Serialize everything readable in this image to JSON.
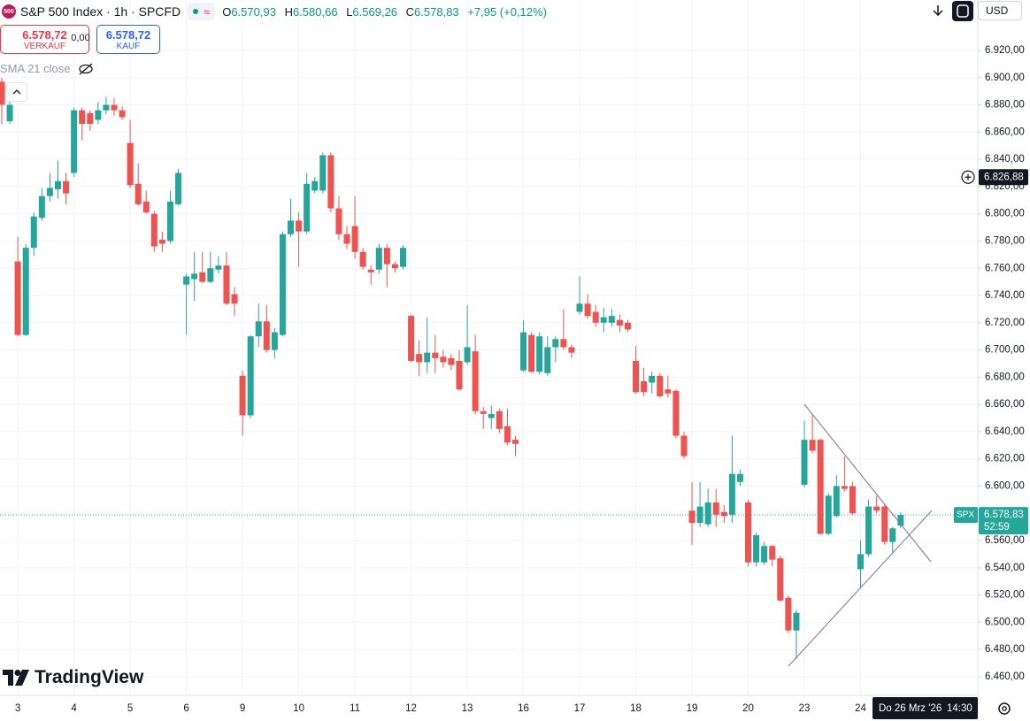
{
  "header": {
    "icon": "500",
    "symbol": "S&P 500 Index · 1h · SPCFD",
    "wave": "≈",
    "open_label": "O",
    "open": "6.570,93",
    "high_label": "H",
    "high": "6.580,66",
    "low_label": "L",
    "low": "6.569,26",
    "close_label": "C",
    "close": "6.578,83",
    "change": "+7,95 (+0,12%)",
    "currency": "USD"
  },
  "trade": {
    "sell_price": "6.578,72",
    "sell_label": "VERKAUF",
    "spread": "0,00",
    "buy_price": "6.578,72",
    "buy_label": "KAUF"
  },
  "indicator": "SMA 21 close",
  "brand": "TradingView",
  "chart_data": {
    "type": "candlestick",
    "up_color": "#26a69a",
    "down_color": "#ef5350",
    "categories": [
      null,
      null,
      "3",
      null,
      null,
      null,
      null,
      null,
      null,
      "4",
      null,
      null,
      null,
      null,
      null,
      null,
      "5",
      null,
      null,
      null,
      null,
      null,
      null,
      "6",
      null,
      null,
      null,
      null,
      null,
      null,
      "9",
      null,
      null,
      null,
      null,
      null,
      null,
      "10",
      null,
      null,
      null,
      null,
      null,
      null,
      "11",
      null,
      null,
      null,
      null,
      null,
      null,
      "12",
      null,
      null,
      null,
      null,
      null,
      null,
      "13",
      null,
      null,
      null,
      null,
      null,
      null,
      "16",
      null,
      null,
      null,
      null,
      null,
      null,
      "17",
      null,
      null,
      null,
      null,
      null,
      null,
      "18",
      null,
      null,
      null,
      null,
      null,
      null,
      "19",
      null,
      null,
      null,
      null,
      null,
      null,
      "20",
      null,
      null,
      null,
      null,
      null,
      null,
      "23",
      null,
      null,
      null,
      null,
      null,
      null,
      "24",
      null,
      null,
      null,
      null,
      null
    ],
    "open": [
      6897,
      6868,
      6765,
      6711,
      6775,
      6797,
      6813,
      6818,
      6824,
      6830,
      6876,
      6874,
      6869,
      6876,
      6880,
      6876,
      6852,
      6822,
      6809,
      6800,
      6781,
      6780,
      6807,
      6748,
      6752,
      6757,
      6750,
      6759,
      6762,
      6741,
      6681,
      6652,
      6710,
      6721,
      6700,
      6711,
      6785,
      6795,
      6787,
      6817,
      6817,
      6843,
      6804,
      6785,
      6791,
      6772,
      6759,
      6759,
      6775,
      6763,
      6761,
      6725,
      6697,
      6691,
      6698,
      6695,
      6694,
      6692,
      6691,
      6699,
      6655,
      6650,
      6655,
      6644,
      6634,
      6685,
      6711,
      6684,
      6683,
      6702,
      6708,
      6702,
      6728,
      6734,
      6728,
      6720,
      6720,
      6722,
      6720,
      6692,
      6677,
      6676,
      6681,
      6671,
      6670,
      6637,
      6582,
      6573,
      6572,
      6588,
      6581,
      6579,
      6603,
      6588,
      6544,
      6544,
      6556,
      6547,
      6518,
      6494,
      6601,
      6634,
      6634,
      6565,
      6578,
      6600,
      6600,
      6539,
      6550,
      6585,
      6585,
      6559,
      6570.93
    ],
    "high": [
      6900,
      6884,
      6783,
      6778,
      6801,
      6819,
      6830,
      6839,
      6830,
      6878,
      6878,
      6876,
      6882,
      6886,
      6885,
      6879,
      6869,
      6837,
      6817,
      6802,
      6787,
      6817,
      6833,
      6756,
      6772,
      6772,
      6772,
      6769,
      6772,
      6746,
      6685,
      6711,
      6734,
      6733,
      6716,
      6787,
      6811,
      6801,
      6830,
      6827,
      6845,
      6845,
      6813,
      6791,
      6813,
      6775,
      6762,
      6778,
      6778,
      6765,
      6777,
      6726,
      6707,
      6724,
      6711,
      6700,
      6697,
      6700,
      6733,
      6711,
      6658,
      6659,
      6657,
      6657,
      6637,
      6722,
      6713,
      6713,
      6710,
      6710,
      6730,
      6704,
      6754,
      6741,
      6733,
      6731,
      6730,
      6726,
      6722,
      6703,
      6687,
      6684,
      6683,
      6681,
      6671,
      6640,
      6603,
      6603,
      6598,
      6598,
      6586,
      6637,
      6612,
      6590,
      6566,
      6559,
      6557,
      6549,
      6520,
      6509,
      6648,
      6653,
      6635,
      6595,
      6608,
      6622,
      6603,
      6560,
      6590,
      6593,
      6587,
      6570,
      6580.66
    ],
    "low": [
      6866,
      6866,
      6710,
      6710,
      6769,
      6795,
      6809,
      6811,
      6807,
      6827,
      6854,
      6861,
      6866,
      6873,
      6872,
      6869,
      6819,
      6806,
      6800,
      6772,
      6772,
      6778,
      6806,
      6711,
      6736,
      6749,
      6749,
      6756,
      6733,
      6725,
      6637,
      6650,
      6702,
      6698,
      6694,
      6710,
      6783,
      6761,
      6785,
      6815,
      6815,
      6801,
      6781,
      6774,
      6767,
      6759,
      6748,
      6756,
      6746,
      6757,
      6759,
      6691,
      6681,
      6683,
      6683,
      6687,
      6685,
      6670,
      6689,
      6653,
      6642,
      6642,
      6639,
      6630,
      6622,
      6684,
      6683,
      6682,
      6681,
      6691,
      6700,
      6694,
      6726,
      6723,
      6717,
      6713,
      6717,
      6713,
      6713,
      6668,
      6666,
      6668,
      6665,
      6665,
      6635,
      6620,
      6557,
      6570,
      6570,
      6570,
      6573,
      6573,
      6600,
      6541,
      6541,
      6542,
      6541,
      6515,
      6492,
      6473,
      6599,
      6624,
      6564,
      6564,
      6577,
      6596,
      6579,
      6525,
      6548,
      6580,
      6557,
      6551,
      6569.26
    ],
    "close": [
      6880,
      6880,
      6711,
      6775,
      6798,
      6813,
      6819,
      6824,
      6815,
      6876,
      6866,
      6866,
      6876,
      6880,
      6876,
      6871,
      6821,
      6807,
      6801,
      6776,
      6778,
      6809,
      6830,
      6754,
      6756,
      6750,
      6760,
      6762,
      6734,
      6734,
      6652,
      6710,
      6721,
      6700,
      6713,
      6785,
      6795,
      6787,
      6822,
      6824,
      6843,
      6804,
      6785,
      6778,
      6772,
      6761,
      6757,
      6775,
      6763,
      6760,
      6775,
      6692,
      6691,
      6698,
      6694,
      6691,
      6689,
      6671,
      6702,
      6655,
      6653,
      6653,
      6642,
      6632,
      6631,
      6713,
      6684,
      6710,
      6702,
      6708,
      6702,
      6698,
      6734,
      6725,
      6720,
      6724,
      6725,
      6718,
      6715,
      6669,
      6669,
      6681,
      6666,
      6668,
      6637,
      6622,
      6573,
      6585,
      6588,
      6579,
      6578,
      6609,
      6609,
      6544,
      6564,
      6556,
      6546,
      6516,
      6494,
      6507,
      6634,
      6626,
      6565,
      6593,
      6600,
      6598,
      6580,
      6550,
      6585,
      6582,
      6559,
      6569,
      6578.83
    ],
    "ylim": [
      6447,
      6957
    ],
    "yticks": [
      {
        "value": 6460,
        "label": "6.460,00"
      },
      {
        "value": 6480,
        "label": "6.480,00"
      },
      {
        "value": 6500,
        "label": "6.500,00"
      },
      {
        "value": 6520,
        "label": "6.520,00"
      },
      {
        "value": 6540,
        "label": "6.540,00"
      },
      {
        "value": 6560,
        "label": "6.560,00"
      },
      {
        "value": 6580,
        "label": "6.580,00"
      },
      {
        "value": 6600,
        "label": "6.600,00"
      },
      {
        "value": 6620,
        "label": "6.620,00"
      },
      {
        "value": 6640,
        "label": "6.640,00"
      },
      {
        "value": 6660,
        "label": "6.660,00"
      },
      {
        "value": 6680,
        "label": "6.680,00"
      },
      {
        "value": 6700,
        "label": "6.700,00"
      },
      {
        "value": 6720,
        "label": "6.720,00"
      },
      {
        "value": 6740,
        "label": "6.740,00"
      },
      {
        "value": 6760,
        "label": "6.760,00"
      },
      {
        "value": 6780,
        "label": "6.780,00"
      },
      {
        "value": 6800,
        "label": "6.800,00"
      },
      {
        "value": 6820,
        "label": "6.820,00"
      },
      {
        "value": 6840,
        "label": "6.840,00"
      },
      {
        "value": 6860,
        "label": "6.860,00"
      },
      {
        "value": 6880,
        "label": "6.880,00"
      },
      {
        "value": 6900,
        "label": "6.900,00"
      },
      {
        "value": 6920,
        "label": "6.920,00"
      }
    ],
    "grid": true,
    "last_price": {
      "value": 6578.83,
      "label": "6.578,83",
      "symbol": "SPX",
      "countdown": "52:59",
      "color": "#26a69a"
    },
    "crosshair": {
      "value": 6826.88,
      "label": "6.826,88",
      "date": "Do 26 Mrz '26",
      "time": "14:30"
    }
  }
}
